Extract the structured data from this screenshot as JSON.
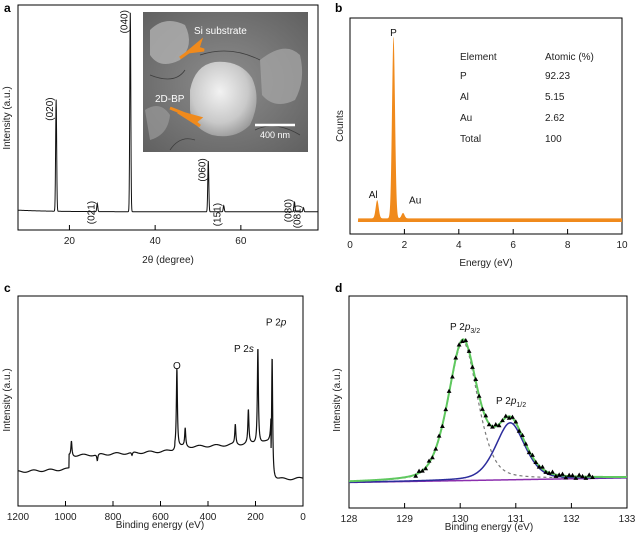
{
  "chart_data": [
    {
      "panel": "a",
      "type": "line",
      "xlabel": "2θ (degree)",
      "ylabel": "Intensity (a.u.)",
      "xlim": [
        8,
        78
      ],
      "ylim": [
        0,
        100
      ],
      "xticks": [
        20,
        40,
        60
      ],
      "peaks": [
        {
          "x": 16.9,
          "y": 55,
          "label": "(020)"
        },
        {
          "x": 26.5,
          "y": 4,
          "label": "(021)"
        },
        {
          "x": 34.2,
          "y": 98,
          "label": "(040)"
        },
        {
          "x": 52.4,
          "y": 25,
          "label": "(060)"
        },
        {
          "x": 56.0,
          "y": 3,
          "label": "(151)"
        },
        {
          "x": 72.5,
          "y": 5,
          "label": "(080)"
        },
        {
          "x": 74.6,
          "y": 2,
          "label": "(081)"
        }
      ],
      "inset": {
        "labels": [
          "Si substrate",
          "2D-BP"
        ],
        "scale_bar": "400 nm"
      }
    },
    {
      "panel": "b",
      "type": "area",
      "xlabel": "Energy (eV)",
      "ylabel": "Counts",
      "xlim": [
        0,
        10
      ],
      "ylim": [
        0,
        100
      ],
      "xticks": [
        0,
        2,
        4,
        6,
        8,
        10
      ],
      "peaks": [
        {
          "x": 1.0,
          "y": 10,
          "label": "Al"
        },
        {
          "x": 1.6,
          "y": 100,
          "label": "P"
        },
        {
          "x": 1.95,
          "y": 3,
          "label": "Au"
        }
      ],
      "baseline": 2,
      "color": "#f08a1c",
      "table": {
        "headers": [
          "Element",
          "Atomic (%)"
        ],
        "rows": [
          [
            "P",
            "92.23"
          ],
          [
            "Al",
            "5.15"
          ],
          [
            "Au",
            "2.62"
          ],
          [
            "Total",
            "100"
          ]
        ]
      }
    },
    {
      "panel": "c",
      "type": "line",
      "xlabel": "Binding energy (eV)",
      "ylabel": "Intensity (a.u.)",
      "xlim": [
        1200,
        0
      ],
      "ylim": [
        0,
        100
      ],
      "xticks": [
        1200,
        1000,
        800,
        600,
        400,
        200,
        0
      ],
      "peaks": [
        {
          "x": 1070,
          "y": 18,
          "label": ""
        },
        {
          "x": 975,
          "y": 27,
          "label": ""
        },
        {
          "x": 866,
          "y": 14,
          "label": ""
        },
        {
          "x": 720,
          "y": 16,
          "label": ""
        },
        {
          "x": 531,
          "y": 66,
          "label": "O"
        },
        {
          "x": 496,
          "y": 29,
          "label": ""
        },
        {
          "x": 285,
          "y": 30,
          "label": ""
        },
        {
          "x": 230,
          "y": 38,
          "label": ""
        },
        {
          "x": 190,
          "y": 76,
          "label": "P 2s"
        },
        {
          "x": 130,
          "y": 92,
          "label": "P 2p"
        }
      ]
    },
    {
      "panel": "d",
      "type": "line",
      "xlabel": "Binding energy (eV)",
      "ylabel": "Intensity (a.u.)",
      "xlim": [
        128,
        133
      ],
      "ylim": [
        0,
        100
      ],
      "xticks": [
        128,
        129,
        130,
        131,
        132,
        133
      ],
      "labels": [
        "P 2p3/2",
        "P 2p1/2"
      ],
      "components": [
        {
          "name": "P 2p3/2",
          "center": 130.05,
          "height": 90,
          "width": 0.28,
          "color": "#7a7a7a",
          "dashed": true
        },
        {
          "name": "P 2p1/2",
          "center": 130.9,
          "height": 37,
          "width": 0.28,
          "color": "#2c2c9c",
          "dashed": false
        }
      ],
      "background": {
        "color": "#8b2fae",
        "from": 1,
        "to": 4
      },
      "envelope_color": "#5fc85f",
      "data_marker": "triangle"
    }
  ]
}
